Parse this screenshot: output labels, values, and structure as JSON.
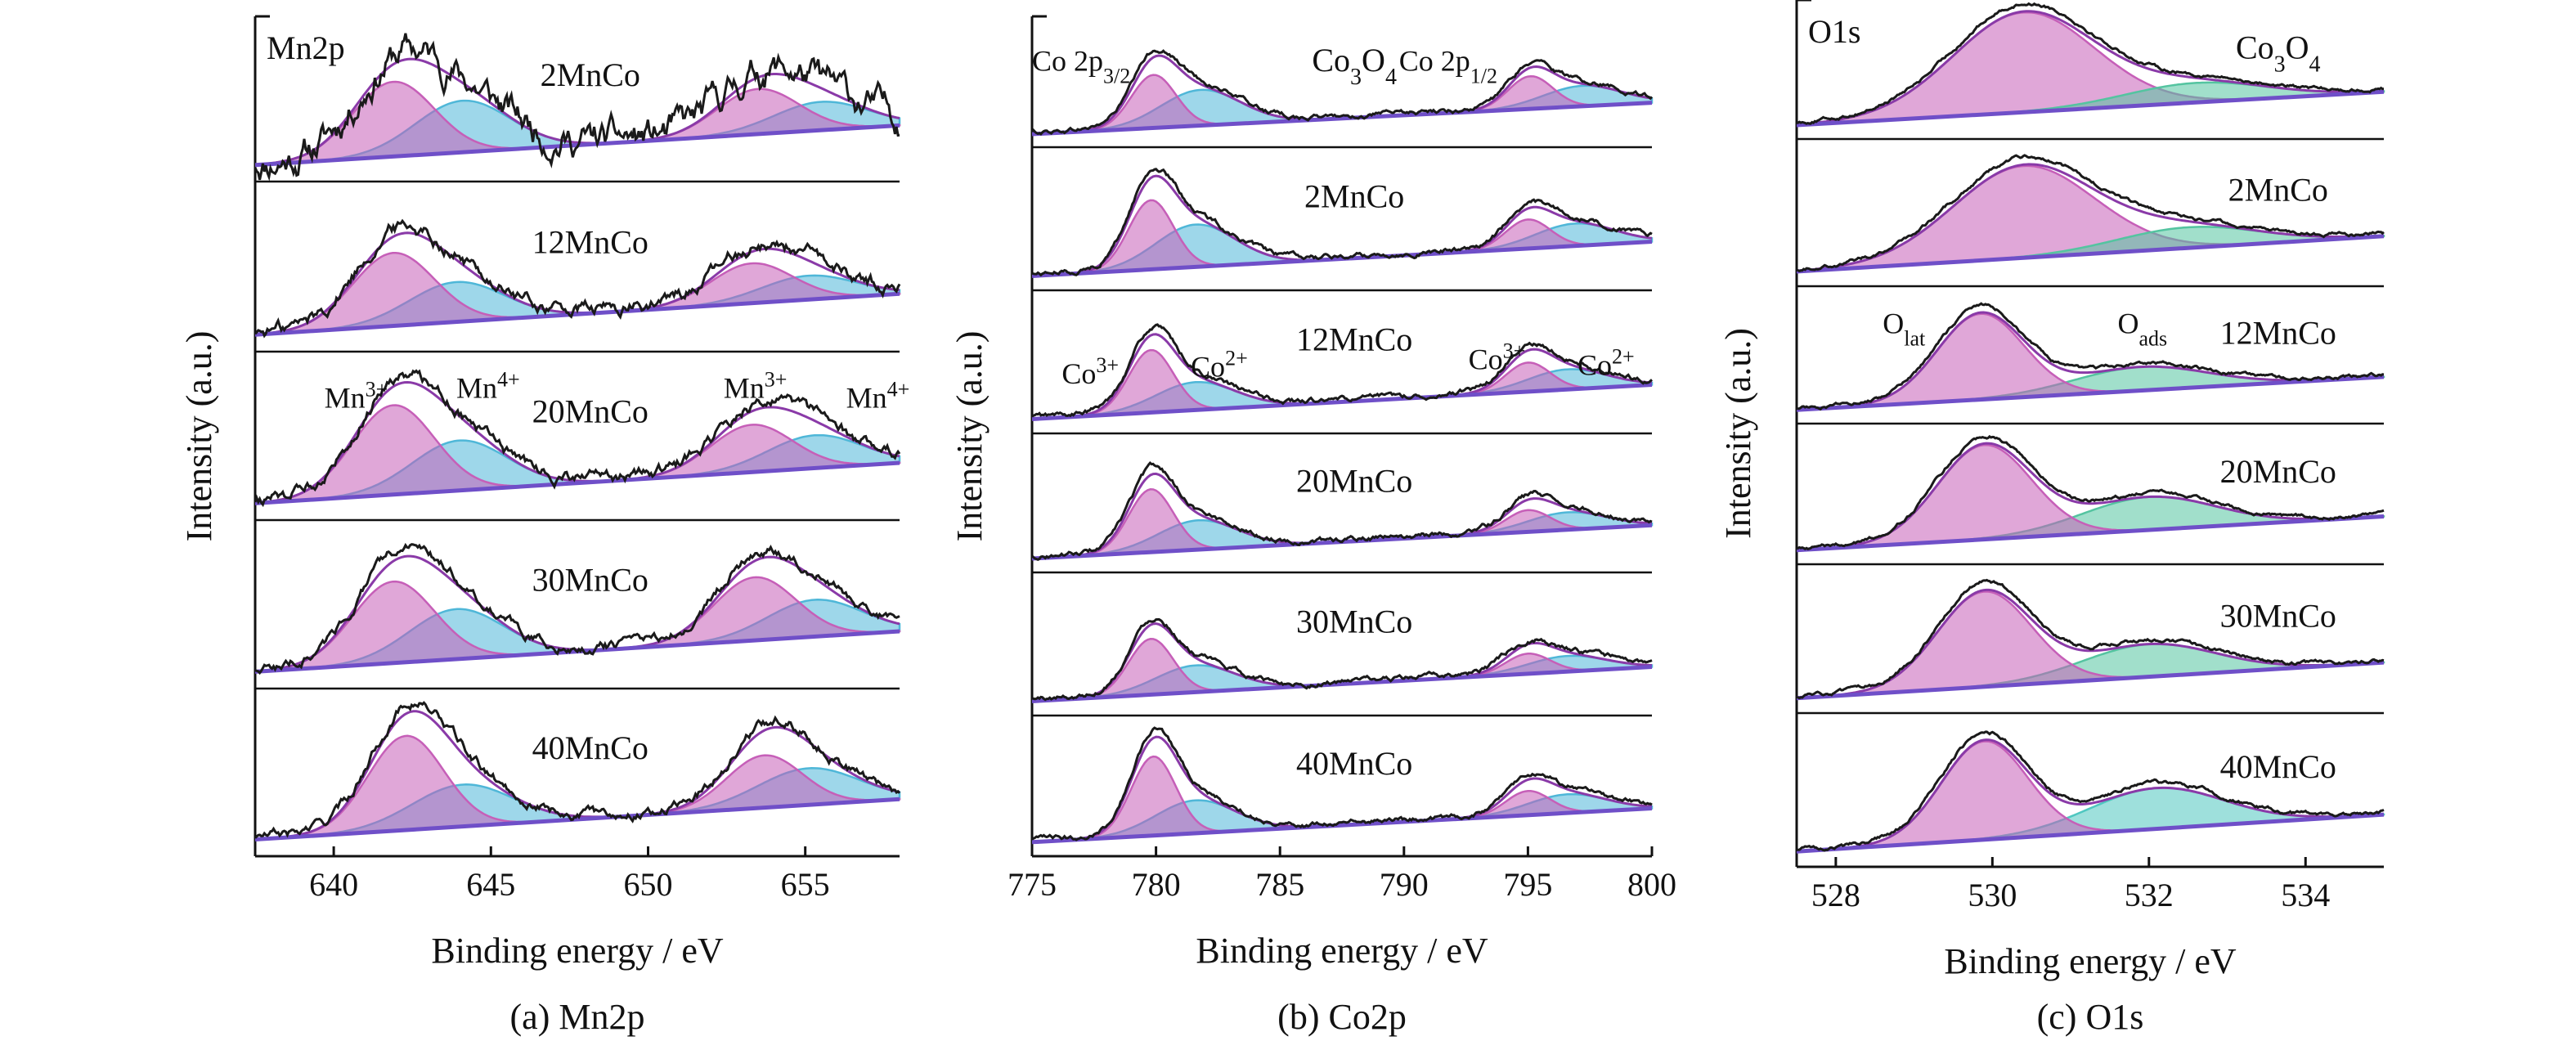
{
  "chart_data": [
    {
      "type": "line",
      "caption": "(a) Mn2p",
      "xlabel": "Binding energy / eV",
      "ylabel": "Intensity (a.u.)",
      "xlim": [
        637.5,
        658
      ],
      "xticks": [
        640,
        645,
        650,
        655
      ],
      "corner_label": "Mn2p",
      "panels": [
        {
          "sample": "2MnCo",
          "noise": 0.16,
          "scale": 0.75,
          "components": [
            {
              "center": 641.9,
              "height": 0.58,
              "width": 1.3,
              "color": "#c65fb8"
            },
            {
              "center": 644.1,
              "height": 0.4,
              "width": 1.5,
              "color": "#4fb7d8"
            },
            {
              "center": 653.5,
              "height": 0.35,
              "width": 1.3,
              "color": "#c65fb8"
            },
            {
              "center": 655.5,
              "height": 0.22,
              "width": 1.5,
              "color": "#4fb7d8"
            }
          ],
          "peak_labels": []
        },
        {
          "sample": "12MnCo",
          "noise": 0.07,
          "scale": 1.0,
          "components": [
            {
              "center": 641.9,
              "height": 0.55,
              "width": 1.3,
              "color": "#c65fb8"
            },
            {
              "center": 643.9,
              "height": 0.3,
              "width": 1.5,
              "color": "#4fb7d8"
            },
            {
              "center": 653.3,
              "height": 0.3,
              "width": 1.3,
              "color": "#c65fb8"
            },
            {
              "center": 655.1,
              "height": 0.18,
              "width": 1.5,
              "color": "#4fb7d8"
            }
          ],
          "peak_labels": []
        },
        {
          "sample": "20MnCo",
          "noise": 0.06,
          "scale": 1.0,
          "components": [
            {
              "center": 641.9,
              "height": 0.68,
              "width": 1.3,
              "color": "#c65fb8"
            },
            {
              "center": 644.0,
              "height": 0.38,
              "width": 1.5,
              "color": "#4fb7d8"
            },
            {
              "center": 653.3,
              "height": 0.36,
              "width": 1.3,
              "color": "#c65fb8"
            },
            {
              "center": 655.3,
              "height": 0.25,
              "width": 1.5,
              "color": "#4fb7d8"
            }
          ],
          "peak_labels": [
            {
              "base": "Mn",
              "sup": "3+",
              "x": 639.7,
              "y": 0.88
            },
            {
              "base": "Mn",
              "sup": "4+",
              "x": 643.9,
              "y": 0.94
            },
            {
              "base": "Mn",
              "sup": "3+",
              "x": 652.4,
              "y": 0.94
            },
            {
              "base": "Mn",
              "sup": "4+",
              "x": 656.3,
              "y": 0.88
            }
          ]
        },
        {
          "sample": "30MnCo",
          "noise": 0.05,
          "scale": 1.0,
          "components": [
            {
              "center": 641.9,
              "height": 0.62,
              "width": 1.3,
              "color": "#c65fb8"
            },
            {
              "center": 643.9,
              "height": 0.38,
              "width": 1.5,
              "color": "#4fb7d8"
            },
            {
              "center": 653.4,
              "height": 0.48,
              "width": 1.3,
              "color": "#c65fb8"
            },
            {
              "center": 655.3,
              "height": 0.28,
              "width": 1.5,
              "color": "#4fb7d8"
            }
          ],
          "peak_labels": []
        },
        {
          "sample": "40MnCo",
          "noise": 0.05,
          "scale": 1.0,
          "components": [
            {
              "center": 642.3,
              "height": 0.72,
              "width": 1.2,
              "color": "#c65fb8"
            },
            {
              "center": 644.1,
              "height": 0.32,
              "width": 1.6,
              "color": "#4fb7d8"
            },
            {
              "center": 653.7,
              "height": 0.4,
              "width": 1.2,
              "color": "#c65fb8"
            },
            {
              "center": 655.1,
              "height": 0.28,
              "width": 1.6,
              "color": "#4fb7d8"
            }
          ],
          "peak_labels": []
        }
      ]
    },
    {
      "type": "line",
      "caption": "(b) Co2p",
      "xlabel": "Binding energy / eV",
      "ylabel": "Intensity (a.u.)",
      "xlim": [
        775,
        800
      ],
      "xticks": [
        775,
        780,
        785,
        790,
        795,
        800
      ],
      "corner_label": "",
      "panels": [
        {
          "sample": "Co3O4",
          "noise": 0.03,
          "scale": 1.0,
          "components": [
            {
              "center": 779.9,
              "height": 0.52,
              "width": 0.9,
              "color": "#c65fb8"
            },
            {
              "center": 781.8,
              "height": 0.35,
              "width": 1.6,
              "color": "#4fb7d8"
            },
            {
              "center": 795.1,
              "height": 0.32,
              "width": 0.9,
              "color": "#c65fb8"
            },
            {
              "center": 797.2,
              "height": 0.2,
              "width": 1.6,
              "color": "#4fb7d8"
            }
          ],
          "peak_labels": [
            {
              "base": "Co 2p",
              "sub": "3/2",
              "x": 775.0,
              "y": 0.86
            },
            {
              "base": "Co 2p",
              "sub": "1/2",
              "x": 789.8,
              "y": 0.86
            }
          ],
          "sample_label_sub": "4"
        },
        {
          "sample": "2MnCo",
          "noise": 0.03,
          "scale": 1.0,
          "components": [
            {
              "center": 779.8,
              "height": 0.62,
              "width": 0.9,
              "color": "#c65fb8"
            },
            {
              "center": 781.6,
              "height": 0.38,
              "width": 1.6,
              "color": "#4fb7d8"
            },
            {
              "center": 795.0,
              "height": 0.26,
              "width": 0.9,
              "color": "#c65fb8"
            },
            {
              "center": 796.9,
              "height": 0.2,
              "width": 1.6,
              "color": "#4fb7d8"
            }
          ],
          "peak_labels": []
        },
        {
          "sample": "12MnCo",
          "noise": 0.03,
          "scale": 1.0,
          "components": [
            {
              "center": 779.8,
              "height": 0.56,
              "width": 0.9,
              "color": "#c65fb8"
            },
            {
              "center": 781.6,
              "height": 0.25,
              "width": 1.6,
              "color": "#4fb7d8"
            },
            {
              "center": 795.0,
              "height": 0.26,
              "width": 0.9,
              "color": "#c65fb8"
            },
            {
              "center": 796.6,
              "height": 0.18,
              "width": 1.6,
              "color": "#4fb7d8"
            }
          ],
          "peak_labels": [
            {
              "base": "Co",
              "sup": "3+",
              "x": 776.2,
              "y": 0.6
            },
            {
              "base": "Co",
              "sup": "2+",
              "x": 781.4,
              "y": 0.65
            },
            {
              "base": "Co",
              "sup": "3+",
              "x": 792.6,
              "y": 0.7
            },
            {
              "base": "Co",
              "sup": "2+",
              "x": 797.0,
              "y": 0.66
            }
          ]
        },
        {
          "sample": "20MnCo",
          "noise": 0.03,
          "scale": 1.0,
          "components": [
            {
              "center": 779.8,
              "height": 0.58,
              "width": 0.9,
              "color": "#c65fb8"
            },
            {
              "center": 781.7,
              "height": 0.27,
              "width": 1.6,
              "color": "#4fb7d8"
            },
            {
              "center": 795.0,
              "height": 0.2,
              "width": 0.9,
              "color": "#c65fb8"
            },
            {
              "center": 796.6,
              "height": 0.16,
              "width": 1.6,
              "color": "#4fb7d8"
            }
          ],
          "peak_labels": []
        },
        {
          "sample": "30MnCo",
          "noise": 0.03,
          "scale": 1.0,
          "components": [
            {
              "center": 779.8,
              "height": 0.5,
              "width": 0.9,
              "color": "#c65fb8"
            },
            {
              "center": 781.6,
              "height": 0.24,
              "width": 1.6,
              "color": "#4fb7d8"
            },
            {
              "center": 795.0,
              "height": 0.18,
              "width": 0.9,
              "color": "#c65fb8"
            },
            {
              "center": 796.6,
              "height": 0.14,
              "width": 1.6,
              "color": "#4fb7d8"
            }
          ],
          "peak_labels": []
        },
        {
          "sample": "40MnCo",
          "noise": 0.03,
          "scale": 1.0,
          "components": [
            {
              "center": 779.9,
              "height": 0.72,
              "width": 0.9,
              "color": "#c65fb8"
            },
            {
              "center": 781.6,
              "height": 0.3,
              "width": 1.6,
              "color": "#4fb7d8"
            },
            {
              "center": 795.0,
              "height": 0.22,
              "width": 0.9,
              "color": "#c65fb8"
            },
            {
              "center": 796.6,
              "height": 0.17,
              "width": 1.6,
              "color": "#4fb7d8"
            }
          ],
          "peak_labels": []
        }
      ]
    },
    {
      "type": "line",
      "caption": "(c) O1s",
      "xlabel": "Binding energy / eV",
      "ylabel": "Intensity (a.u.)",
      "xlim": [
        527.5,
        535
      ],
      "xticks": [
        528,
        530,
        532,
        534
      ],
      "corner_label": "O1s",
      "panels": [
        {
          "sample": "Co3O4",
          "noise": 0.02,
          "scale": 1.0,
          "components": [
            {
              "center": 530.4,
              "height": 0.92,
              "width": 0.9,
              "color": "#c65fb8"
            },
            {
              "center": 532.6,
              "height": 0.18,
              "width": 0.9,
              "color": "#54c4a0"
            }
          ],
          "peak_labels": [],
          "sample_label_sub": "4"
        },
        {
          "sample": "2MnCo",
          "noise": 0.02,
          "scale": 1.0,
          "components": [
            {
              "center": 530.4,
              "height": 0.8,
              "width": 0.9,
              "color": "#c65fb8"
            },
            {
              "center": 532.5,
              "height": 0.18,
              "width": 0.9,
              "color": "#54c4a0"
            }
          ],
          "peak_labels": []
        },
        {
          "sample": "12MnCo",
          "noise": 0.02,
          "scale": 1.0,
          "components": [
            {
              "center": 529.85,
              "height": 0.8,
              "width": 0.55,
              "color": "#c65fb8"
            },
            {
              "center": 531.9,
              "height": 0.22,
              "width": 0.85,
              "color": "#54c4a0"
            }
          ],
          "peak_labels": [
            {
              "base": "O",
              "sub": "lat",
              "x": 528.6,
              "y": 0.92
            },
            {
              "base": "O",
              "sub": "ads",
              "x": 531.6,
              "y": 0.92
            }
          ]
        },
        {
          "sample": "20MnCo",
          "noise": 0.02,
          "scale": 1.0,
          "components": [
            {
              "center": 529.9,
              "height": 0.86,
              "width": 0.6,
              "color": "#c65fb8"
            },
            {
              "center": 532.0,
              "height": 0.3,
              "width": 0.85,
              "color": "#54c4a0"
            }
          ],
          "peak_labels": []
        },
        {
          "sample": "30MnCo",
          "noise": 0.02,
          "scale": 1.0,
          "components": [
            {
              "center": 529.9,
              "height": 0.82,
              "width": 0.6,
              "color": "#c65fb8"
            },
            {
              "center": 532.0,
              "height": 0.28,
              "width": 0.85,
              "color": "#54c4a0"
            }
          ],
          "peak_labels": []
        },
        {
          "sample": "40MnCo",
          "noise": 0.02,
          "scale": 1.0,
          "components": [
            {
              "center": 529.9,
              "height": 0.82,
              "width": 0.55,
              "color": "#c65fb8"
            },
            {
              "center": 532.1,
              "height": 0.34,
              "width": 0.85,
              "color": "#4fc7c0"
            }
          ],
          "peak_labels": []
        }
      ]
    }
  ],
  "labels": {
    "co3o4_base": "Co",
    "co3o4_sub1": "3",
    "co3o4_mid": "O",
    "co3o4_sub2": "4"
  },
  "colors": {
    "raw_curve": "#1a1a1a",
    "envelope": "#8a3aa8",
    "baseline": "#6f4fc8",
    "frame": "#111111"
  }
}
